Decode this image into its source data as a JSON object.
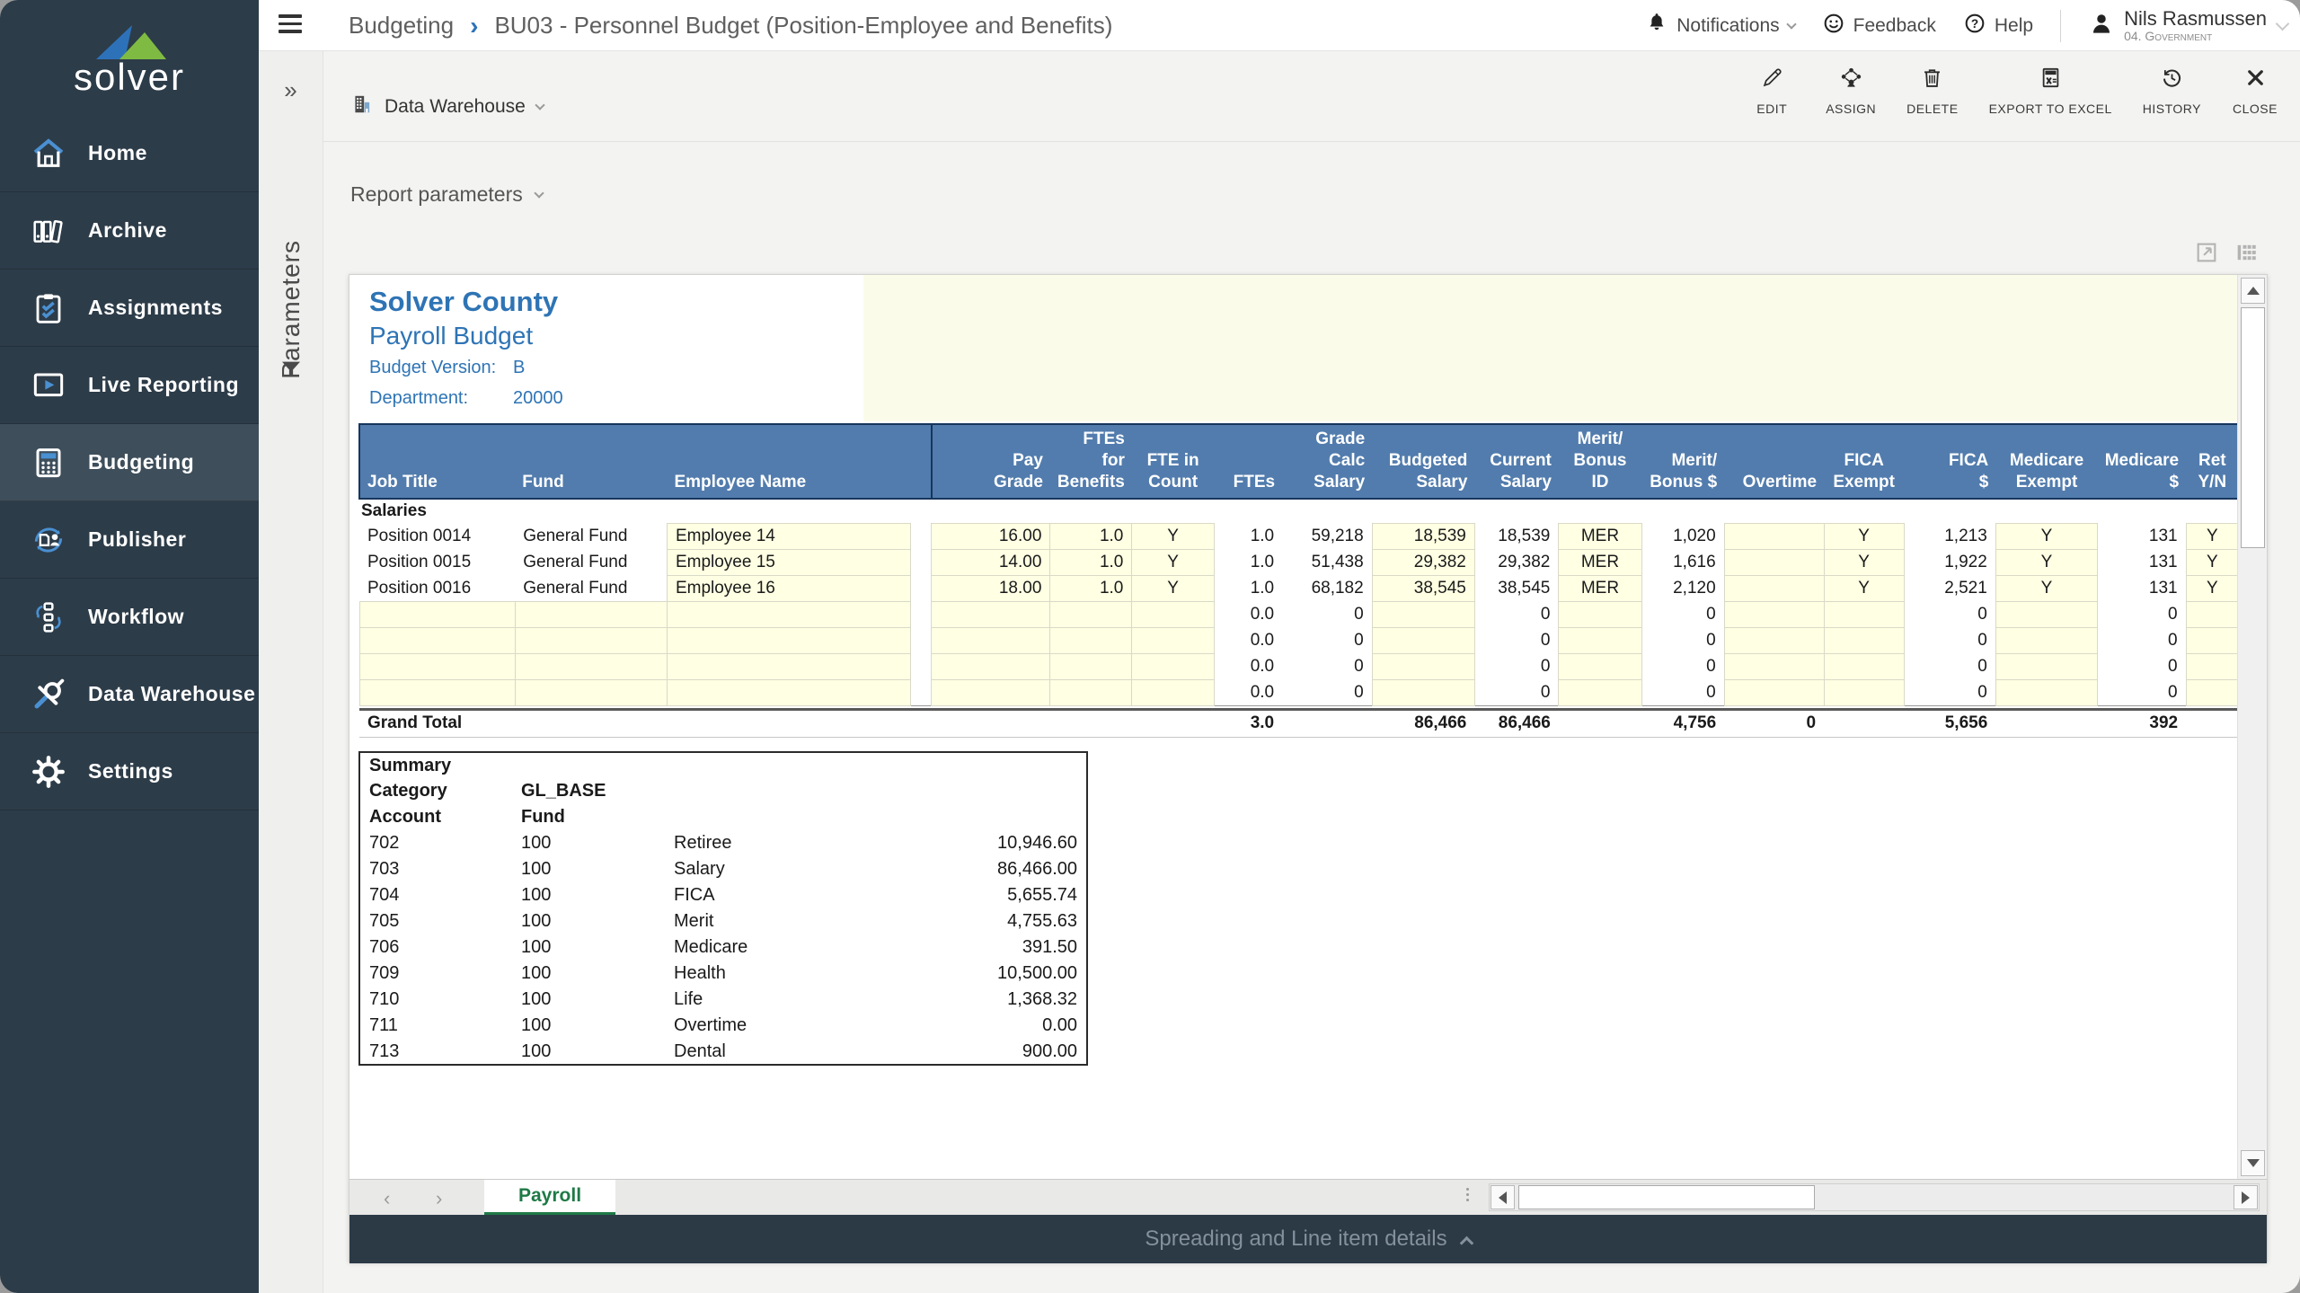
{
  "header": {
    "breadcrumb": {
      "section": "Budgeting",
      "separator": "›",
      "title": "BU03 - Personnel Budget (Position-Employee and Benefits)"
    },
    "notifications_label": "Notifications",
    "feedback_label": "Feedback",
    "help_label": "Help",
    "user": {
      "name": "Nils Rasmussen",
      "role": "04. Government"
    }
  },
  "sidebar": {
    "logo_text": "solver",
    "items": [
      {
        "id": "home",
        "label": "Home",
        "active": false
      },
      {
        "id": "archive",
        "label": "Archive",
        "active": false
      },
      {
        "id": "assignments",
        "label": "Assignments",
        "active": false
      },
      {
        "id": "live-reporting",
        "label": "Live Reporting",
        "active": false
      },
      {
        "id": "budgeting",
        "label": "Budgeting",
        "active": true
      },
      {
        "id": "publisher",
        "label": "Publisher",
        "active": false
      },
      {
        "id": "workflow",
        "label": "Workflow",
        "active": false
      },
      {
        "id": "data-warehouse",
        "label": "Data Warehouse",
        "active": false
      },
      {
        "id": "settings",
        "label": "Settings",
        "active": false
      }
    ]
  },
  "parameters_panel": {
    "label": "Parameters",
    "collapse_icon": "»"
  },
  "toolbar": {
    "source_label": "Data Warehouse",
    "report_parameters_label": "Report parameters",
    "actions": [
      {
        "id": "edit",
        "label": "EDIT"
      },
      {
        "id": "assign",
        "label": "ASSIGN"
      },
      {
        "id": "delete",
        "label": "DELETE"
      },
      {
        "id": "export-to-excel",
        "label": "EXPORT TO EXCEL"
      },
      {
        "id": "history",
        "label": "HISTORY"
      },
      {
        "id": "close",
        "label": "CLOSE"
      }
    ]
  },
  "report": {
    "company": "Solver County",
    "title": "Payroll Budget",
    "budget_version_label": "Budget Version:",
    "budget_version_value": "B",
    "department_label": "Department:",
    "department_value": "20000",
    "table": {
      "section_label": "Salaries",
      "columns": [
        {
          "id": "job_title",
          "label": "Job Title"
        },
        {
          "id": "fund",
          "label": "Fund"
        },
        {
          "id": "employee_name",
          "label": "Employee Name"
        },
        {
          "id": "pay_grade",
          "label": "Pay\nGrade"
        },
        {
          "id": "ftes_for_benefits",
          "label": "FTEs for\nBenefits"
        },
        {
          "id": "fte_in_count",
          "label": "FTE in\nCount"
        },
        {
          "id": "ftes",
          "label": "FTEs"
        },
        {
          "id": "grade_calc_salary",
          "label": "Grade Calc\nSalary"
        },
        {
          "id": "budgeted_salary",
          "label": "Budgeted\nSalary"
        },
        {
          "id": "current_salary",
          "label": "Current\nSalary"
        },
        {
          "id": "merit_bonus_id",
          "label": "Merit/\nBonus ID"
        },
        {
          "id": "merit_bonus_amount",
          "label": "Merit/\nBonus $"
        },
        {
          "id": "overtime",
          "label": "Overtime"
        },
        {
          "id": "fica_exempt",
          "label": "FICA\nExempt"
        },
        {
          "id": "fica_amount",
          "label": "FICA\n$"
        },
        {
          "id": "medicare_exempt",
          "label": "Medicare\nExempt"
        },
        {
          "id": "medicare_amount",
          "label": "Medicare\n$"
        },
        {
          "id": "ret_yn",
          "label": "Ret\nY/N"
        }
      ],
      "rows": [
        [
          "Position 0014",
          "General Fund",
          "Employee 14",
          "16.00",
          "1.0",
          "Y",
          "1.0",
          "59,218",
          "18,539",
          "18,539",
          "MER",
          "1,020",
          "",
          "Y",
          "1,213",
          "Y",
          "131",
          "Y"
        ],
        [
          "Position 0015",
          "General Fund",
          "Employee 15",
          "14.00",
          "1.0",
          "Y",
          "1.0",
          "51,438",
          "29,382",
          "29,382",
          "MER",
          "1,616",
          "",
          "Y",
          "1,922",
          "Y",
          "131",
          "Y"
        ],
        [
          "Position 0016",
          "General Fund",
          "Employee 16",
          "18.00",
          "1.0",
          "Y",
          "1.0",
          "68,182",
          "38,545",
          "38,545",
          "MER",
          "2,120",
          "",
          "Y",
          "2,521",
          "Y",
          "131",
          "Y"
        ],
        [
          "",
          "",
          "",
          "",
          "",
          "",
          "0.0",
          "0",
          "",
          "0",
          "",
          "0",
          "",
          "",
          "0",
          "",
          "0",
          ""
        ],
        [
          "",
          "",
          "",
          "",
          "",
          "",
          "0.0",
          "0",
          "",
          "0",
          "",
          "0",
          "",
          "",
          "0",
          "",
          "0",
          ""
        ],
        [
          "",
          "",
          "",
          "",
          "",
          "",
          "0.0",
          "0",
          "",
          "0",
          "",
          "0",
          "",
          "",
          "0",
          "",
          "0",
          ""
        ],
        [
          "",
          "",
          "",
          "",
          "",
          "",
          "0.0",
          "0",
          "",
          "0",
          "",
          "0",
          "",
          "",
          "0",
          "",
          "0",
          ""
        ]
      ],
      "grand_total": {
        "label": "Grand Total",
        "ftes": "3.0",
        "budgeted_salary": "86,466",
        "current_salary": "86,466",
        "merit_bonus_amount": "4,756",
        "overtime": "0",
        "fica_amount": "5,656",
        "medicare_amount": "392"
      }
    },
    "summary": {
      "title": "Summary",
      "category_label": "Category",
      "category_value": "GL_BASE",
      "account_label": "Account",
      "fund_label": "Fund",
      "rows": [
        [
          "702",
          "100",
          "Retiree",
          "10,946.60"
        ],
        [
          "703",
          "100",
          "Salary",
          "86,466.00"
        ],
        [
          "704",
          "100",
          "FICA",
          "5,655.74"
        ],
        [
          "705",
          "100",
          "Merit",
          "4,755.63"
        ],
        [
          "706",
          "100",
          "Medicare",
          "391.50"
        ],
        [
          "709",
          "100",
          "Health",
          "10,500.00"
        ],
        [
          "710",
          "100",
          "Life",
          "1,368.32"
        ],
        [
          "711",
          "100",
          "Overtime",
          "0.00"
        ],
        [
          "713",
          "100",
          "Dental",
          "900.00"
        ]
      ]
    },
    "sheet_tab": "Payroll",
    "sheet_nav": {
      "prev": "‹",
      "next": "›"
    },
    "footer_toggle": "Spreading and Line item details"
  }
}
